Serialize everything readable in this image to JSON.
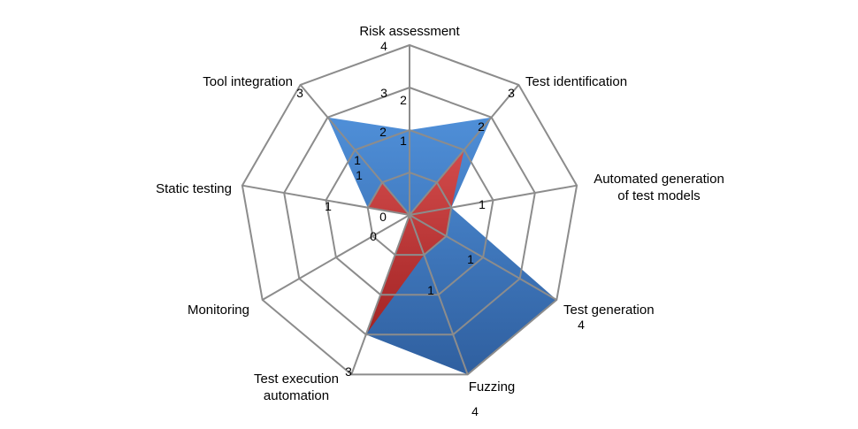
{
  "colors": {
    "blue_top": "#4f8fd8",
    "blue_bottom": "#2f5f9f",
    "red_top": "#d24b4b",
    "red_bottom": "#a32424",
    "grid": "#8c8c8c"
  },
  "chart_data": {
    "type": "radar",
    "title": "",
    "axes": [
      "Risk assessment",
      "Test identification",
      "Automated generation of test models",
      "Test generation",
      "Fuzzing",
      "Test execution automation",
      "Monitoring",
      "Static testing",
      "Tool integration"
    ],
    "range": [
      0,
      4
    ],
    "rings": 4,
    "series": [
      {
        "values": [
          2,
          3,
          1,
          4,
          4,
          3,
          0,
          1,
          3
        ]
      },
      {
        "values": [
          0,
          2,
          1,
          1,
          1,
          3,
          0,
          1,
          1
        ]
      }
    ],
    "grid": true,
    "legend": "none",
    "tick_labels": [
      {
        "axis": 0,
        "text": "4"
      },
      {
        "axis": 0,
        "text": "3"
      },
      {
        "axis": 0,
        "text": "2"
      },
      {
        "axis": 0,
        "text": "1"
      },
      {
        "axis": 0,
        "text": "0"
      },
      {
        "axis": 1,
        "text": "3"
      },
      {
        "axis": 1,
        "text": "2"
      },
      {
        "axis": 2,
        "text": "1"
      },
      {
        "axis": 3,
        "text": "1"
      },
      {
        "axis": 3,
        "text": "4"
      },
      {
        "axis": 4,
        "text": "1"
      },
      {
        "axis": 4,
        "text": "4"
      },
      {
        "axis": 5,
        "text": "3"
      },
      {
        "axis": 6,
        "text": "0"
      },
      {
        "axis": 7,
        "text": "1"
      },
      {
        "axis": 8,
        "text": "3"
      },
      {
        "axis": 8,
        "text": "2"
      },
      {
        "axis": 8,
        "text": "1"
      },
      {
        "axis": 8,
        "text": "1"
      }
    ]
  }
}
